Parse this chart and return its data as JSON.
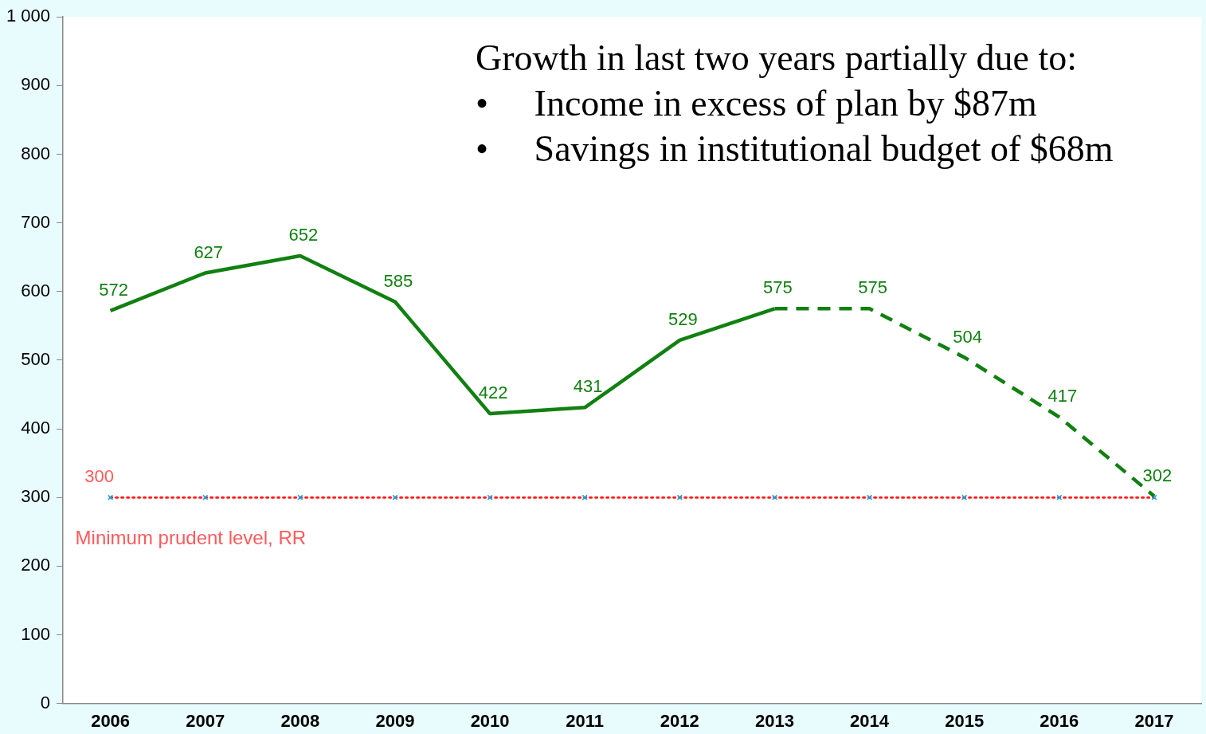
{
  "chart_data": {
    "type": "line",
    "categories": [
      "2006",
      "2007",
      "2008",
      "2009",
      "2010",
      "2011",
      "2012",
      "2013",
      "2014",
      "2015",
      "2016",
      "2017"
    ],
    "series": [
      {
        "color": "#118011",
        "line_style": "solid",
        "marker": "none",
        "values": [
          572,
          627,
          652,
          585,
          422,
          431,
          529,
          575,
          null,
          null,
          null,
          null
        ],
        "value_labels": [
          "572",
          "627",
          "652",
          "585",
          "422",
          "431",
          "529",
          "575",
          null,
          null,
          null,
          null
        ]
      },
      {
        "color": "#118011",
        "line_style": "dashed",
        "marker": "none",
        "values": [
          null,
          null,
          null,
          null,
          null,
          null,
          null,
          575,
          575,
          504,
          417,
          302
        ],
        "value_labels": [
          null,
          null,
          null,
          null,
          null,
          null,
          null,
          null,
          "575",
          "504",
          "417",
          "302"
        ]
      },
      {
        "name": "Minimum prudent level, RR",
        "color": "#ff2020",
        "line_style": "dotted",
        "marker": "cross",
        "values": [
          300,
          300,
          300,
          300,
          300,
          300,
          300,
          300,
          300,
          300,
          300,
          300
        ],
        "value_labels": [
          "300",
          null,
          null,
          null,
          null,
          null,
          null,
          null,
          null,
          null,
          null,
          null
        ]
      }
    ],
    "ylim": [
      0,
      1000
    ],
    "yticks": [
      0,
      100,
      200,
      300,
      400,
      500,
      600,
      700,
      800,
      900,
      {
        "value": 1000,
        "label": "1 000"
      }
    ],
    "grid": false,
    "legend": false,
    "annotations": [
      "Growth in last two years partially due to:",
      "•\tIncome in excess of plan by $87m",
      "•\tSavings in institutional budget of $68m"
    ]
  }
}
